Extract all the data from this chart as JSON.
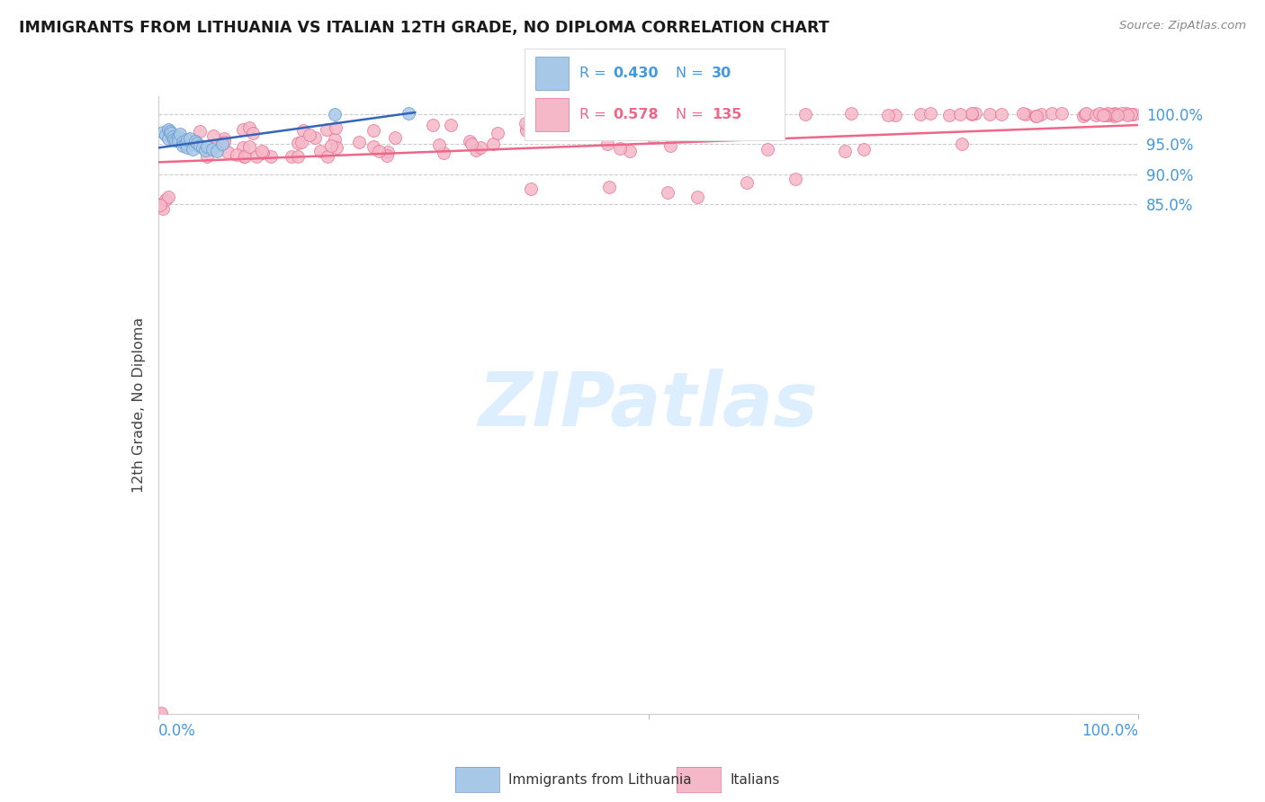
{
  "title": "IMMIGRANTS FROM LITHUANIA VS ITALIAN 12TH GRADE, NO DIPLOMA CORRELATION CHART",
  "source": "Source: ZipAtlas.com",
  "ylabel": "12th Grade, No Diploma",
  "ytick_labels": [
    "100.0%",
    "95.0%",
    "90.0%",
    "85.0%"
  ],
  "ytick_positions": [
    1.0,
    0.95,
    0.9,
    0.85
  ],
  "xmin": 0.0,
  "xmax": 1.0,
  "ymin": 0.0,
  "ymax": 1.03,
  "scatter_size": 100,
  "blue_color": "#a8c8e8",
  "blue_edge_color": "#6699cc",
  "pink_color": "#f5b8c8",
  "pink_edge_color": "#e87090",
  "blue_line_color": "#3366bb",
  "pink_line_color": "#ee6688",
  "grid_color": "#cccccc",
  "bg_color": "#ffffff",
  "title_fontsize": 12.5,
  "axis_label_color": "#444444",
  "tick_color": "#4499dd",
  "watermark_color": "#ddeeff",
  "watermark_fontsize": 60,
  "legend_r_blue": "0.430",
  "legend_n_blue": "30",
  "legend_r_pink": "0.578",
  "legend_n_pink": "135"
}
